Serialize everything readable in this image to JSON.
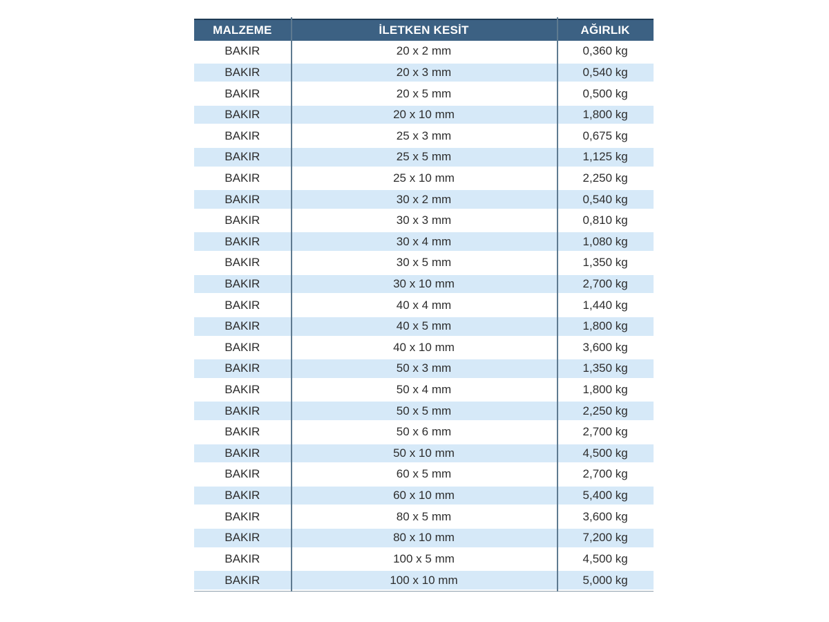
{
  "table": {
    "headers": [
      "MALZEME",
      "İLETKEN KESİT",
      "AĞIRLIK"
    ],
    "rows": [
      {
        "material": "BAKIR",
        "section": "20 x 2 mm",
        "weight": "0,360 kg"
      },
      {
        "material": "BAKIR",
        "section": "20 x 3 mm",
        "weight": "0,540 kg"
      },
      {
        "material": "BAKIR",
        "section": "20 x 5 mm",
        "weight": "0,500 kg"
      },
      {
        "material": "BAKIR",
        "section": "20 x 10 mm",
        "weight": "1,800 kg"
      },
      {
        "material": "BAKIR",
        "section": "25 x 3 mm",
        "weight": "0,675 kg"
      },
      {
        "material": "BAKIR",
        "section": "25 x 5 mm",
        "weight": "1,125 kg"
      },
      {
        "material": "BAKIR",
        "section": "25 x 10 mm",
        "weight": "2,250 kg"
      },
      {
        "material": "BAKIR",
        "section": "30 x 2 mm",
        "weight": "0,540 kg"
      },
      {
        "material": "BAKIR",
        "section": "30 x 3 mm",
        "weight": "0,810 kg"
      },
      {
        "material": "BAKIR",
        "section": "30 x 4 mm",
        "weight": "1,080 kg"
      },
      {
        "material": "BAKIR",
        "section": "30 x 5 mm",
        "weight": "1,350 kg"
      },
      {
        "material": "BAKIR",
        "section": "30 x 10 mm",
        "weight": "2,700 kg"
      },
      {
        "material": "BAKIR",
        "section": "40 x 4 mm",
        "weight": "1,440 kg"
      },
      {
        "material": "BAKIR",
        "section": "40 x 5 mm",
        "weight": "1,800 kg"
      },
      {
        "material": "BAKIR",
        "section": "40 x 10 mm",
        "weight": "3,600 kg"
      },
      {
        "material": "BAKIR",
        "section": "50 x 3 mm",
        "weight": "1,350 kg"
      },
      {
        "material": "BAKIR",
        "section": "50 x 4 mm",
        "weight": "1,800 kg"
      },
      {
        "material": "BAKIR",
        "section": "50 x 5 mm",
        "weight": "2,250 kg"
      },
      {
        "material": "BAKIR",
        "section": "50 x 6 mm",
        "weight": "2,700 kg"
      },
      {
        "material": "BAKIR",
        "section": "50 x 10 mm",
        "weight": "4,500 kg"
      },
      {
        "material": "BAKIR",
        "section": "60 x 5 mm",
        "weight": "2,700 kg"
      },
      {
        "material": "BAKIR",
        "section": "60 x 10 mm",
        "weight": "5,400 kg"
      },
      {
        "material": "BAKIR",
        "section": "80 x 5 mm",
        "weight": "3,600 kg"
      },
      {
        "material": "BAKIR",
        "section": "80 x 10 mm",
        "weight": "7,200 kg"
      },
      {
        "material": "BAKIR",
        "section": "100 x 5 mm",
        "weight": "4,500 kg"
      },
      {
        "material": "BAKIR",
        "section": "100 x 10 mm",
        "weight": "5,000 kg"
      }
    ]
  },
  "colors": {
    "header_bg": "#3c6183",
    "header_top_border": "#1e3a54",
    "header_text": "#ffffff",
    "alt_row_bg": "#d6e9f8",
    "row_bg": "#ffffff",
    "divider": "#5e7a90",
    "bottom_border": "#8fa0ad",
    "cell_text": "#2d2d2d"
  }
}
